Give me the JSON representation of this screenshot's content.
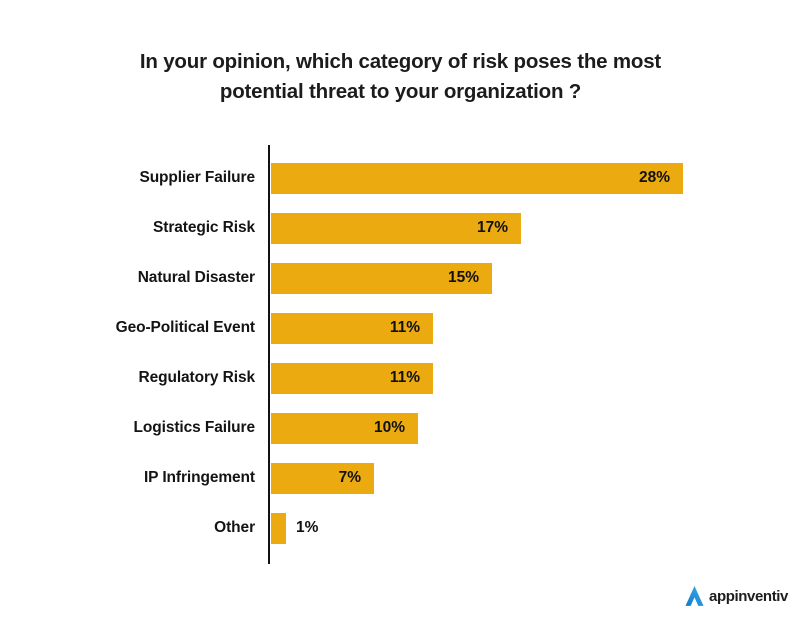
{
  "title": {
    "line1": "In your opinion, which category of risk poses the most",
    "line2": "potential threat to your organization ?"
  },
  "chart_data": {
    "type": "bar",
    "orientation": "horizontal",
    "title": "In your opinion, which category of risk poses the most potential threat to your organization ?",
    "categories": [
      "Supplier Failure",
      "Strategic Risk",
      "Natural Disaster",
      "Geo-Political Event",
      "Regulatory Risk",
      "Logistics Failure",
      "IP Infringement",
      "Other"
    ],
    "values": [
      28,
      17,
      15,
      11,
      11,
      10,
      7,
      1
    ],
    "value_labels": [
      "28%",
      "17%",
      "15%",
      "11%",
      "11%",
      "10%",
      "7%",
      "1%"
    ],
    "xlabel": "",
    "ylabel": "",
    "xlim": [
      0,
      28
    ],
    "grid": false,
    "legend": false,
    "bar_color": "#EAAA10",
    "axis_color": "#121212",
    "label_color": "#141414",
    "value_label_placement": "inside-end, outside for smallest bar"
  },
  "branding": {
    "logo_text": "appinventiv",
    "logo_icon": "appinventiv-triangle-icon",
    "logo_blue_light": "#3AB0EC",
    "logo_blue_dark": "#1578C8",
    "logo_text_color": "#1d1d1f"
  }
}
